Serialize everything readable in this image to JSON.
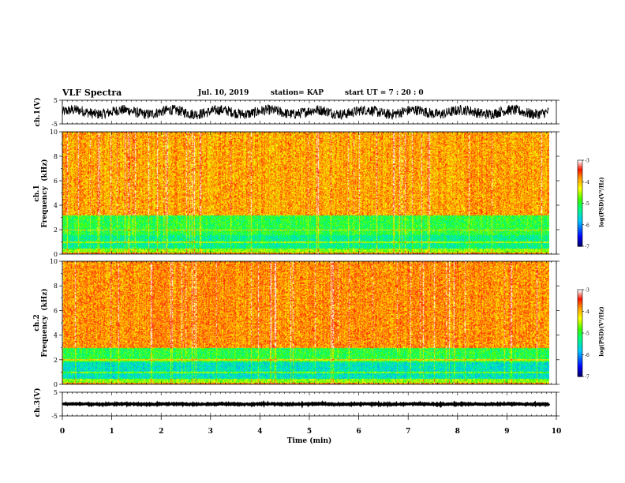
{
  "header": {
    "title": "VLF Spectra",
    "date": "Jul. 10, 2019",
    "station": "station= KAP",
    "start": "start  UT =   7 : 20 : 0"
  },
  "chart_data": {
    "type": "heatmap",
    "xlabel": "Time (min)",
    "xlim": [
      0,
      10
    ],
    "x_ticks": [
      0,
      1,
      2,
      3,
      4,
      5,
      6,
      7,
      8,
      9,
      10
    ],
    "data_end_min": 9.85,
    "panels": [
      {
        "id": "ch1-waveform",
        "kind": "waveform",
        "ylabel": "ch.1(V)",
        "ylim": [
          -5,
          5
        ],
        "y_ticks": [
          -5,
          5
        ],
        "amplitude": 2.2,
        "offset": 0
      },
      {
        "id": "ch1-spectrogram",
        "kind": "spectrogram",
        "ylabel": "ch.1\nFrequency  (kHz)",
        "ylim": [
          0,
          10
        ],
        "y_ticks": [
          0,
          2,
          4,
          6,
          8,
          10
        ],
        "bands": [
          {
            "from": 0,
            "to": 0.5,
            "level": -4.6
          },
          {
            "from": 0.5,
            "to": 1.6,
            "level": -5.3
          },
          {
            "from": 1.6,
            "to": 3.2,
            "level": -5.0
          },
          {
            "from": 3.2,
            "to": 10,
            "level": -3.9
          }
        ],
        "colorbar": {
          "label": "log(PSD)(V²/Hz)",
          "range": [
            -7,
            -3
          ],
          "ticks": [
            -3,
            -4,
            -5,
            -6,
            -7
          ]
        }
      },
      {
        "id": "ch2-spectrogram",
        "kind": "spectrogram",
        "ylabel": "ch.2\nFrequency  (kHz)",
        "ylim": [
          0,
          10
        ],
        "y_ticks": [
          0,
          2,
          4,
          6,
          8,
          10
        ],
        "bands": [
          {
            "from": 0,
            "to": 0.5,
            "level": -4.6
          },
          {
            "from": 0.5,
            "to": 1.8,
            "level": -5.5
          },
          {
            "from": 1.8,
            "to": 3.0,
            "level": -5.0
          },
          {
            "from": 3.0,
            "to": 10,
            "level": -3.8
          }
        ],
        "colorbar": {
          "label": "log(PSD)(V²/Hz)",
          "range": [
            -7,
            -3
          ],
          "ticks": [
            -3,
            -4,
            -5,
            -6,
            -7
          ]
        }
      },
      {
        "id": "ch3-waveform",
        "kind": "waveform",
        "ylabel": "ch.3(V)",
        "ylim": [
          -5,
          5
        ],
        "y_ticks": [
          -5,
          5
        ],
        "amplitude": 0.2,
        "offset": 0
      }
    ]
  }
}
